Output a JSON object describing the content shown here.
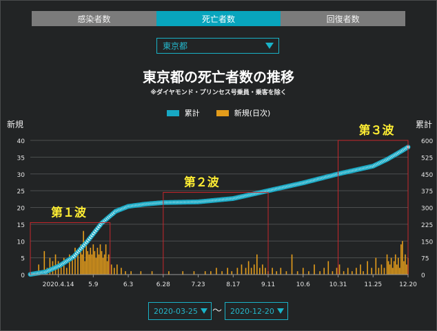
{
  "tabs": [
    {
      "label": "感染者数",
      "active": false
    },
    {
      "label": "死亡者数",
      "active": true
    },
    {
      "label": "回復者数",
      "active": false
    }
  ],
  "prefecture_select": {
    "value": "東京都"
  },
  "date_range": {
    "start": "2020-03-25",
    "separator": "〜",
    "end": "2020-12-20"
  },
  "colors": {
    "cumulative": "#17a8c4",
    "daily": "#e39c1b",
    "wave_box": "#c8272d",
    "wave_label": "#ffee33"
  },
  "chart_data": {
    "type": "bar",
    "title": "東京都の死亡者数の推移",
    "subtitle": "※ダイヤモンド・プリンセス号乗員・乗客を除く",
    "legend": [
      "累計",
      "新規(日次)"
    ],
    "left_axis_label": "新規",
    "right_axis_label": "累計",
    "left_ylim": [
      0,
      40
    ],
    "left_ticks": [
      "0",
      "5",
      "10",
      "15",
      "20",
      "25",
      "30",
      "35",
      "40"
    ],
    "right_ylim": [
      0,
      600
    ],
    "right_ticks": [
      "0",
      "75",
      "150",
      "225",
      "300",
      "375",
      "450",
      "525",
      "600"
    ],
    "xlim": [
      "2020-03-25",
      "2020-12-20"
    ],
    "x_ticks": [
      {
        "date": "2020-04-14",
        "label": "2020.4.14"
      },
      {
        "date": "2020-05-09",
        "label": "5.9"
      },
      {
        "date": "2020-06-03",
        "label": "6.3"
      },
      {
        "date": "2020-06-28",
        "label": "6.28"
      },
      {
        "date": "2020-07-23",
        "label": "7.23"
      },
      {
        "date": "2020-08-17",
        "label": "8.17"
      },
      {
        "date": "2020-09-11",
        "label": "9.11"
      },
      {
        "date": "2020-10-06",
        "label": "10.6"
      },
      {
        "date": "2020-10-31",
        "label": "10.31"
      },
      {
        "date": "2020-11-25",
        "label": "11.25"
      },
      {
        "date": "2020-12-20",
        "label": "12.20"
      }
    ],
    "grid": true,
    "cumulative_anchors": [
      {
        "date": "2020-03-25",
        "value": 1
      },
      {
        "date": "2020-04-05",
        "value": 12
      },
      {
        "date": "2020-04-15",
        "value": 40
      },
      {
        "date": "2020-04-25",
        "value": 80
      },
      {
        "date": "2020-05-05",
        "value": 150
      },
      {
        "date": "2020-05-15",
        "value": 230
      },
      {
        "date": "2020-05-25",
        "value": 283
      },
      {
        "date": "2020-06-03",
        "value": 305
      },
      {
        "date": "2020-06-15",
        "value": 315
      },
      {
        "date": "2020-06-28",
        "value": 322
      },
      {
        "date": "2020-07-23",
        "value": 325
      },
      {
        "date": "2020-08-17",
        "value": 340
      },
      {
        "date": "2020-09-11",
        "value": 375
      },
      {
        "date": "2020-10-06",
        "value": 410
      },
      {
        "date": "2020-10-31",
        "value": 450
      },
      {
        "date": "2020-11-25",
        "value": 485
      },
      {
        "date": "2020-12-05",
        "value": 515
      },
      {
        "date": "2020-12-12",
        "value": 540
      },
      {
        "date": "2020-12-20",
        "value": 570
      }
    ],
    "daily_new": [
      {
        "date": "2020-03-31",
        "value": 3
      },
      {
        "date": "2020-04-04",
        "value": 7
      },
      {
        "date": "2020-04-06",
        "value": 2
      },
      {
        "date": "2020-04-08",
        "value": 5
      },
      {
        "date": "2020-04-10",
        "value": 4
      },
      {
        "date": "2020-04-12",
        "value": 6
      },
      {
        "date": "2020-04-14",
        "value": 4
      },
      {
        "date": "2020-04-16",
        "value": 3
      },
      {
        "date": "2020-04-18",
        "value": 5
      },
      {
        "date": "2020-04-20",
        "value": 2
      },
      {
        "date": "2020-04-22",
        "value": 6
      },
      {
        "date": "2020-04-24",
        "value": 5
      },
      {
        "date": "2020-04-26",
        "value": 8
      },
      {
        "date": "2020-04-28",
        "value": 7
      },
      {
        "date": "2020-04-30",
        "value": 9
      },
      {
        "date": "2020-05-01",
        "value": 6
      },
      {
        "date": "2020-05-02",
        "value": 13
      },
      {
        "date": "2020-05-03",
        "value": 4
      },
      {
        "date": "2020-05-04",
        "value": 10
      },
      {
        "date": "2020-05-05",
        "value": 7
      },
      {
        "date": "2020-05-06",
        "value": 6
      },
      {
        "date": "2020-05-07",
        "value": 8
      },
      {
        "date": "2020-05-08",
        "value": 6
      },
      {
        "date": "2020-05-09",
        "value": 9
      },
      {
        "date": "2020-05-10",
        "value": 7
      },
      {
        "date": "2020-05-11",
        "value": 5
      },
      {
        "date": "2020-05-12",
        "value": 8
      },
      {
        "date": "2020-05-13",
        "value": 6
      },
      {
        "date": "2020-05-14",
        "value": 9
      },
      {
        "date": "2020-05-15",
        "value": 7
      },
      {
        "date": "2020-05-16",
        "value": 5
      },
      {
        "date": "2020-05-17",
        "value": 6
      },
      {
        "date": "2020-05-18",
        "value": 9
      },
      {
        "date": "2020-05-19",
        "value": 4
      },
      {
        "date": "2020-05-20",
        "value": 6
      },
      {
        "date": "2020-05-22",
        "value": 3
      },
      {
        "date": "2020-05-24",
        "value": 2
      },
      {
        "date": "2020-05-26",
        "value": 3
      },
      {
        "date": "2020-05-29",
        "value": 2
      },
      {
        "date": "2020-06-01",
        "value": 1
      },
      {
        "date": "2020-06-05",
        "value": 1
      },
      {
        "date": "2020-06-12",
        "value": 1
      },
      {
        "date": "2020-06-20",
        "value": 1
      },
      {
        "date": "2020-07-02",
        "value": 1
      },
      {
        "date": "2020-07-12",
        "value": 1
      },
      {
        "date": "2020-07-20",
        "value": 1
      },
      {
        "date": "2020-07-28",
        "value": 1
      },
      {
        "date": "2020-08-01",
        "value": 1
      },
      {
        "date": "2020-08-05",
        "value": 2
      },
      {
        "date": "2020-08-09",
        "value": 1
      },
      {
        "date": "2020-08-13",
        "value": 2
      },
      {
        "date": "2020-08-16",
        "value": 1
      },
      {
        "date": "2020-08-20",
        "value": 2
      },
      {
        "date": "2020-08-23",
        "value": 3
      },
      {
        "date": "2020-08-26",
        "value": 2
      },
      {
        "date": "2020-08-28",
        "value": 4
      },
      {
        "date": "2020-08-30",
        "value": 2
      },
      {
        "date": "2020-09-01",
        "value": 3
      },
      {
        "date": "2020-09-03",
        "value": 6
      },
      {
        "date": "2020-09-05",
        "value": 2
      },
      {
        "date": "2020-09-07",
        "value": 3
      },
      {
        "date": "2020-09-09",
        "value": 2
      },
      {
        "date": "2020-09-11",
        "value": 1
      },
      {
        "date": "2020-09-14",
        "value": 2
      },
      {
        "date": "2020-09-17",
        "value": 1
      },
      {
        "date": "2020-09-20",
        "value": 2
      },
      {
        "date": "2020-09-24",
        "value": 1
      },
      {
        "date": "2020-09-28",
        "value": 6
      },
      {
        "date": "2020-10-02",
        "value": 1
      },
      {
        "date": "2020-10-06",
        "value": 2
      },
      {
        "date": "2020-10-10",
        "value": 1
      },
      {
        "date": "2020-10-14",
        "value": 3
      },
      {
        "date": "2020-10-18",
        "value": 1
      },
      {
        "date": "2020-10-21",
        "value": 2
      },
      {
        "date": "2020-10-24",
        "value": 4
      },
      {
        "date": "2020-10-27",
        "value": 1
      },
      {
        "date": "2020-10-30",
        "value": 2
      },
      {
        "date": "2020-11-01",
        "value": 3
      },
      {
        "date": "2020-11-04",
        "value": 1
      },
      {
        "date": "2020-11-07",
        "value": 2
      },
      {
        "date": "2020-11-10",
        "value": 1
      },
      {
        "date": "2020-11-13",
        "value": 2
      },
      {
        "date": "2020-11-16",
        "value": 3
      },
      {
        "date": "2020-11-18",
        "value": 1
      },
      {
        "date": "2020-11-21",
        "value": 4
      },
      {
        "date": "2020-11-24",
        "value": 2
      },
      {
        "date": "2020-11-27",
        "value": 5
      },
      {
        "date": "2020-11-29",
        "value": 2
      },
      {
        "date": "2020-12-01",
        "value": 3
      },
      {
        "date": "2020-12-03",
        "value": 2
      },
      {
        "date": "2020-12-05",
        "value": 6
      },
      {
        "date": "2020-12-06",
        "value": 4
      },
      {
        "date": "2020-12-07",
        "value": 3
      },
      {
        "date": "2020-12-08",
        "value": 5
      },
      {
        "date": "2020-12-09",
        "value": 2
      },
      {
        "date": "2020-12-10",
        "value": 4
      },
      {
        "date": "2020-12-11",
        "value": 6
      },
      {
        "date": "2020-12-12",
        "value": 3
      },
      {
        "date": "2020-12-13",
        "value": 5
      },
      {
        "date": "2020-12-14",
        "value": 2
      },
      {
        "date": "2020-12-15",
        "value": 9
      },
      {
        "date": "2020-12-16",
        "value": 10
      },
      {
        "date": "2020-12-17",
        "value": 4
      },
      {
        "date": "2020-12-18",
        "value": 6
      },
      {
        "date": "2020-12-19",
        "value": 3
      },
      {
        "date": "2020-12-20",
        "value": 5
      }
    ],
    "annotations": [
      {
        "label": "第１波",
        "start": "2020-03-25",
        "end": "2020-05-21",
        "ymax_new": 15.5
      },
      {
        "label": "第２波",
        "start": "2020-06-28",
        "end": "2020-09-11",
        "ymax_new": 24.5
      },
      {
        "label": "第３波",
        "start": "2020-10-31",
        "end": "2020-12-20",
        "ymax_new": 40
      }
    ]
  }
}
